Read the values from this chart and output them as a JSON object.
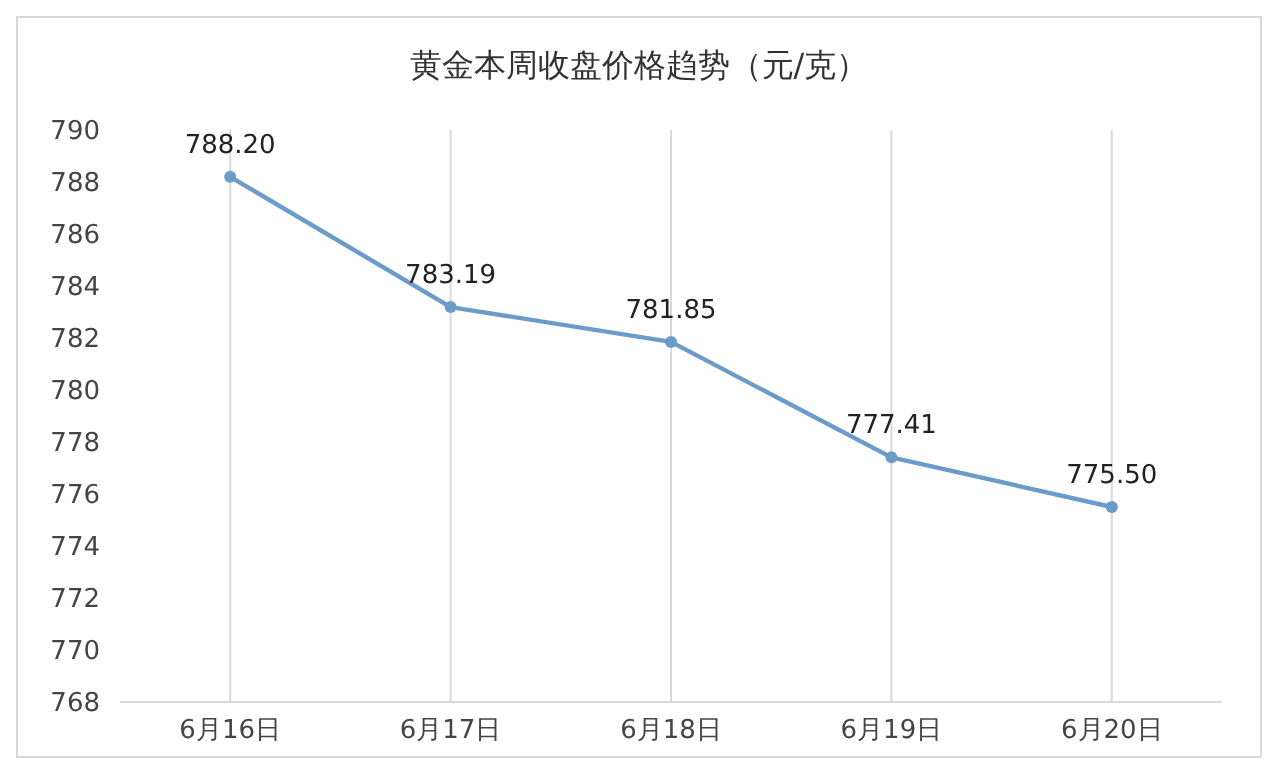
{
  "chart_data": {
    "type": "line",
    "title": "黄金本周收盘价格趋势（元/克）",
    "categories": [
      "6月16日",
      "6月17日",
      "6月18日",
      "6月19日",
      "6月20日"
    ],
    "series": [
      {
        "color": "#6a9bc9",
        "values": [
          788.2,
          783.19,
          781.85,
          777.41,
          775.5
        ],
        "value_labels": [
          "788.20",
          "783.19",
          "781.85",
          "777.41",
          "775.50"
        ]
      }
    ],
    "ylim": [
      768,
      790
    ],
    "yticks": [
      768,
      770,
      772,
      774,
      776,
      778,
      780,
      782,
      784,
      786,
      788,
      790
    ],
    "grid": "x",
    "marker": "circle",
    "line_style": "solid"
  }
}
